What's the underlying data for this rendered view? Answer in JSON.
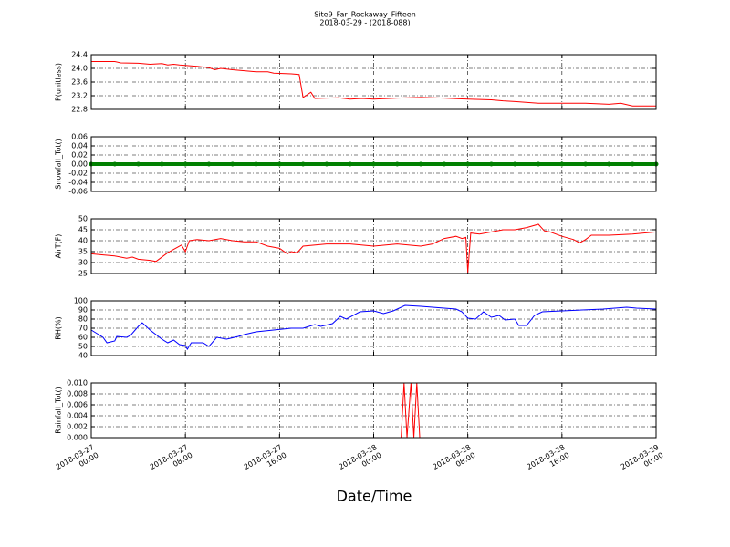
{
  "figure": {
    "title": "Site9_Far_Rockaway_Fifteen",
    "subtitle": "2018-03-29 - (2018-088)",
    "xlabel": "Date/Time"
  },
  "chart_data": [
    {
      "type": "line",
      "ylabel": "P(unitless)",
      "color": "#ff0000",
      "grid": true,
      "xlim": [
        "2018-03-27 00:00",
        "2018-03-29 00:00"
      ],
      "xticks": [
        "2018-03-27 00:00",
        "2018-03-27 08:00",
        "2018-03-27 16:00",
        "2018-03-28 00:00",
        "2018-03-28 08:00",
        "2018-03-28 16:00",
        "2018-03-29 00:00"
      ],
      "ylim": [
        22.8,
        24.4
      ],
      "yticks": [
        22.8,
        23.2,
        23.6,
        {
          "value": 24,
          "label": "24.0"
        },
        24.4
      ],
      "x": [
        "2018-03-27 00:00",
        "2018-03-27 02:00",
        "2018-03-27 02:30",
        "2018-03-27 04:00",
        "2018-03-27 05:00",
        "2018-03-27 06:00",
        "2018-03-27 06:30",
        "2018-03-27 07:00",
        "2018-03-27 07:30",
        "2018-03-27 09:00",
        "2018-03-27 10:00",
        "2018-03-27 10:30",
        "2018-03-27 11:00",
        "2018-03-27 12:00",
        "2018-03-27 14:00",
        "2018-03-27 15:00",
        "2018-03-27 15:30",
        "2018-03-27 17:00",
        "2018-03-27 17:40",
        "2018-03-27 18:00",
        "2018-03-27 18:40",
        "2018-03-27 19:00",
        "2018-03-27 21:00",
        "2018-03-27 22:00",
        "2018-03-27 23:00",
        "2018-03-28 00:00",
        "2018-03-28 02:00",
        "2018-03-28 04:00",
        "2018-03-28 06:00",
        "2018-03-28 08:00",
        "2018-03-28 10:00",
        "2018-03-28 11:00",
        "2018-03-28 12:00",
        "2018-03-28 14:00",
        "2018-03-28 16:00",
        "2018-03-28 18:00",
        "2018-03-28 20:00",
        "2018-03-28 21:00",
        "2018-03-28 22:00",
        "2018-03-29 00:00"
      ],
      "values": [
        24.2,
        24.2,
        24.16,
        24.15,
        24.12,
        24.14,
        24.1,
        24.12,
        24.1,
        24.06,
        24.02,
        23.96,
        24.0,
        23.96,
        23.9,
        23.9,
        23.86,
        23.84,
        23.82,
        23.15,
        23.3,
        23.12,
        23.14,
        23.1,
        23.12,
        23.1,
        23.13,
        23.15,
        23.13,
        23.1,
        23.08,
        23.05,
        23.03,
        22.98,
        22.98,
        22.98,
        22.95,
        22.98,
        22.9,
        22.9
      ]
    },
    {
      "type": "line",
      "ylabel": "Snowfall_Tot()",
      "color": "#008000",
      "marker": true,
      "grid": true,
      "xlim": [
        "2018-03-27 00:00",
        "2018-03-29 00:00"
      ],
      "xticks": [
        "2018-03-27 00:00",
        "2018-03-27 08:00",
        "2018-03-27 16:00",
        "2018-03-28 00:00",
        "2018-03-28 08:00",
        "2018-03-28 16:00",
        "2018-03-29 00:00"
      ],
      "ylim": [
        -0.06,
        0.06
      ],
      "yticks": [
        -0.06,
        -0.04,
        -0.02,
        {
          "value": 0,
          "label": "0.00"
        },
        0.02,
        0.04,
        0.06
      ],
      "x": [
        "2018-03-27 00:00",
        "2018-03-27 02:00",
        "2018-03-27 04:00",
        "2018-03-27 06:00",
        "2018-03-27 08:00",
        "2018-03-27 10:00",
        "2018-03-27 12:00",
        "2018-03-27 14:00",
        "2018-03-27 16:00",
        "2018-03-27 18:00",
        "2018-03-27 20:00",
        "2018-03-27 22:00",
        "2018-03-28 00:00",
        "2018-03-28 02:00",
        "2018-03-28 04:00",
        "2018-03-28 06:00",
        "2018-03-28 08:00",
        "2018-03-28 10:00",
        "2018-03-28 12:00",
        "2018-03-28 14:00",
        "2018-03-28 16:00",
        "2018-03-28 18:00",
        "2018-03-28 20:00",
        "2018-03-28 22:00",
        "2018-03-29 00:00"
      ],
      "values": [
        0,
        0,
        0,
        0,
        0,
        0,
        0,
        0,
        0,
        0,
        0,
        0,
        0,
        0,
        0,
        0,
        0,
        0,
        0,
        0,
        0,
        0,
        0,
        0,
        0
      ]
    },
    {
      "type": "line",
      "ylabel": "AirT(F)",
      "color": "#ff0000",
      "grid": true,
      "xlim": [
        "2018-03-27 00:00",
        "2018-03-29 00:00"
      ],
      "xticks": [
        "2018-03-27 00:00",
        "2018-03-27 08:00",
        "2018-03-27 16:00",
        "2018-03-28 00:00",
        "2018-03-28 08:00",
        "2018-03-28 16:00",
        "2018-03-29 00:00"
      ],
      "ylim": [
        25,
        50
      ],
      "yticks": [
        25,
        30,
        35,
        40,
        45,
        50
      ],
      "x": [
        "2018-03-27 00:00",
        "2018-03-27 01:00",
        "2018-03-27 02:00",
        "2018-03-27 03:00",
        "2018-03-27 03:30",
        "2018-03-27 04:00",
        "2018-03-27 05:00",
        "2018-03-27 05:30",
        "2018-03-27 06:30",
        "2018-03-27 07:00",
        "2018-03-27 07:40",
        "2018-03-27 08:00",
        "2018-03-27 08:20",
        "2018-03-27 09:00",
        "2018-03-27 10:00",
        "2018-03-27 11:00",
        "2018-03-27 12:00",
        "2018-03-27 13:00",
        "2018-03-27 14:00",
        "2018-03-27 15:00",
        "2018-03-27 16:00",
        "2018-03-27 16:40",
        "2018-03-27 17:00",
        "2018-03-27 17:30",
        "2018-03-27 18:00",
        "2018-03-27 20:00",
        "2018-03-27 22:00",
        "2018-03-28 00:00",
        "2018-03-28 02:00",
        "2018-03-28 04:00",
        "2018-03-28 05:00",
        "2018-03-28 06:00",
        "2018-03-28 07:00",
        "2018-03-28 07:30",
        "2018-03-28 07:50",
        "2018-03-28 08:00",
        "2018-03-28 08:15",
        "2018-03-28 09:00",
        "2018-03-28 10:00",
        "2018-03-28 11:00",
        "2018-03-28 12:00",
        "2018-03-28 13:00",
        "2018-03-28 14:00",
        "2018-03-28 14:30",
        "2018-03-28 15:00",
        "2018-03-28 16:00",
        "2018-03-28 17:00",
        "2018-03-28 17:30",
        "2018-03-28 18:00",
        "2018-03-28 18:30",
        "2018-03-28 20:00",
        "2018-03-28 22:00",
        "2018-03-29 00:00"
      ],
      "values": [
        34,
        33.5,
        33,
        32,
        32.5,
        31.5,
        31,
        30.5,
        34.5,
        36,
        38,
        35,
        40,
        40.5,
        40,
        41,
        40,
        39.5,
        39.5,
        37.5,
        36.5,
        34,
        35,
        34.5,
        37.5,
        38.5,
        38.5,
        37.5,
        38.5,
        37.5,
        38.5,
        41,
        42,
        41,
        41.5,
        25.5,
        43.5,
        43,
        44,
        45,
        45,
        46,
        47.5,
        44.5,
        44,
        42,
        40.5,
        39,
        40.5,
        42.5,
        42.5,
        43,
        44
      ]
    },
    {
      "type": "line",
      "ylabel": "RH(%)",
      "color": "#0000ff",
      "grid": true,
      "xlim": [
        "2018-03-27 00:00",
        "2018-03-29 00:00"
      ],
      "xticks": [
        "2018-03-27 00:00",
        "2018-03-27 08:00",
        "2018-03-27 16:00",
        "2018-03-28 00:00",
        "2018-03-28 08:00",
        "2018-03-28 16:00",
        "2018-03-29 00:00"
      ],
      "ylim": [
        40,
        100
      ],
      "yticks": [
        40,
        50,
        60,
        70,
        80,
        90,
        100
      ],
      "x": [
        "2018-03-27 00:00",
        "2018-03-27 01:00",
        "2018-03-27 01:20",
        "2018-03-27 02:00",
        "2018-03-27 02:10",
        "2018-03-27 03:00",
        "2018-03-27 03:20",
        "2018-03-27 04:00",
        "2018-03-27 04:20",
        "2018-03-27 05:00",
        "2018-03-27 06:00",
        "2018-03-27 06:30",
        "2018-03-27 07:00",
        "2018-03-27 07:30",
        "2018-03-27 08:00",
        "2018-03-27 08:10",
        "2018-03-27 08:30",
        "2018-03-27 09:30",
        "2018-03-27 10:00",
        "2018-03-27 10:40",
        "2018-03-27 11:30",
        "2018-03-27 12:30",
        "2018-03-27 13:00",
        "2018-03-27 14:00",
        "2018-03-27 15:30",
        "2018-03-27 17:00",
        "2018-03-27 18:00",
        "2018-03-27 19:00",
        "2018-03-27 19:30",
        "2018-03-27 20:30",
        "2018-03-27 21:10",
        "2018-03-27 21:40",
        "2018-03-27 22:50",
        "2018-03-28 00:00",
        "2018-03-28 00:50",
        "2018-03-28 01:40",
        "2018-03-28 02:40",
        "2018-03-28 04:00",
        "2018-03-28 05:00",
        "2018-03-28 06:00",
        "2018-03-28 07:00",
        "2018-03-28 07:30",
        "2018-03-28 08:00",
        "2018-03-28 08:40",
        "2018-03-28 09:20",
        "2018-03-28 10:00",
        "2018-03-28 10:40",
        "2018-03-28 11:10",
        "2018-03-28 12:00",
        "2018-03-28 12:20",
        "2018-03-28 13:00",
        "2018-03-28 13:40",
        "2018-03-28 14:20",
        "2018-03-28 16:00",
        "2018-03-28 19:30",
        "2018-03-28 21:30",
        "2018-03-28 22:20",
        "2018-03-29 00:00"
      ],
      "values": [
        68,
        60,
        54,
        56,
        61,
        60,
        62,
        72,
        76,
        68,
        58,
        54,
        57,
        52,
        51,
        47,
        54,
        54,
        50,
        60,
        58,
        61,
        63,
        66,
        68,
        70,
        70,
        74,
        72,
        75,
        83,
        80,
        88,
        89,
        86,
        89,
        95,
        94,
        93,
        92,
        91,
        88,
        81,
        80,
        88,
        82,
        84,
        79,
        80,
        73,
        73,
        84,
        88,
        89,
        91,
        93,
        92,
        91
      ]
    },
    {
      "type": "line",
      "ylabel": "Rainfall_Tot()",
      "color": "#ff0000",
      "grid": true,
      "xlim": [
        "2018-03-27 00:00",
        "2018-03-29 00:00"
      ],
      "xticks": [
        "2018-03-27 00:00",
        "2018-03-27 08:00",
        "2018-03-27 16:00",
        "2018-03-28 00:00",
        "2018-03-28 08:00",
        "2018-03-28 16:00",
        "2018-03-29 00:00"
      ],
      "ylim": [
        0,
        0.01
      ],
      "yticks": [
        {
          "value": 0,
          "label": "0.000"
        },
        {
          "value": 0.002,
          "label": "0.002"
        },
        {
          "value": 0.004,
          "label": "0.004"
        },
        {
          "value": 0.006,
          "label": "0.006"
        },
        {
          "value": 0.008,
          "label": "0.008"
        },
        {
          "value": 0.01,
          "label": "0.010"
        }
      ],
      "x": [
        "2018-03-27 00:00",
        "2018-03-28 02:20",
        "2018-03-28 02:35",
        "2018-03-28 02:50",
        "2018-03-28 03:10",
        "2018-03-28 03:25",
        "2018-03-28 03:40",
        "2018-03-28 03:55",
        "2018-03-29 00:00"
      ],
      "values": [
        0,
        0,
        0.01,
        0,
        0.01,
        0,
        0.01,
        0,
        0
      ]
    }
  ]
}
